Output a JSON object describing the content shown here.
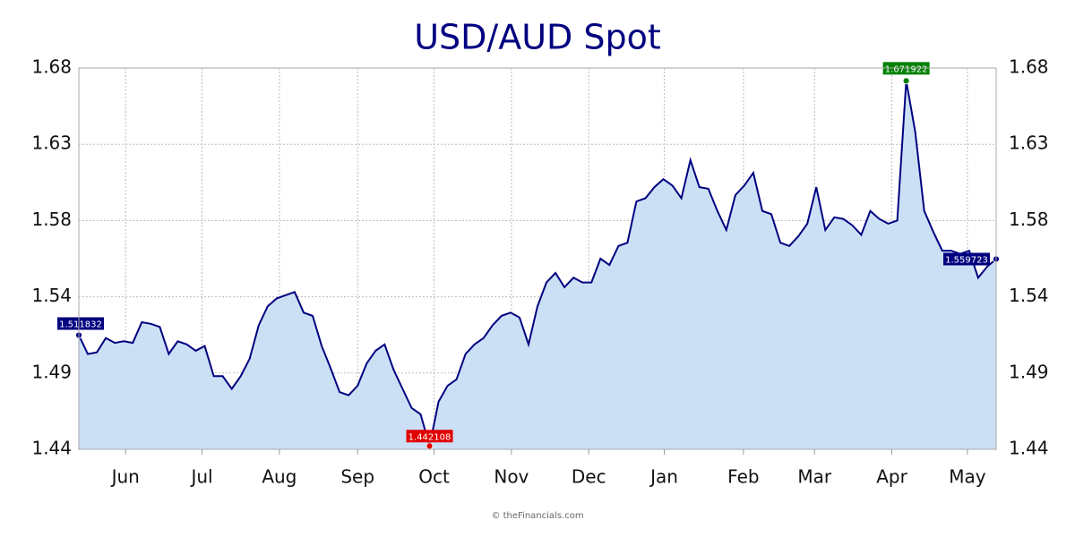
{
  "chart_data": {
    "type": "area",
    "title": "USD/AUD Spot",
    "source": "© theFinancials.com",
    "values": [
      1.511832,
      1.5,
      1.501,
      1.51,
      1.507,
      1.508,
      1.507,
      1.52,
      1.519,
      1.517,
      1.5,
      1.508,
      1.506,
      1.502,
      1.505,
      1.486,
      1.486,
      1.478,
      1.486,
      1.497,
      1.518,
      1.53,
      1.535,
      1.537,
      1.539,
      1.526,
      1.524,
      1.505,
      1.491,
      1.476,
      1.474,
      1.48,
      1.494,
      1.502,
      1.506,
      1.49,
      1.478,
      1.466,
      1.462,
      1.442108,
      1.47,
      1.48,
      1.484,
      1.5,
      1.506,
      1.51,
      1.518,
      1.524,
      1.526,
      1.523,
      1.506,
      1.53,
      1.545,
      1.551,
      1.542,
      1.548,
      1.545,
      1.545,
      1.56,
      1.556,
      1.568,
      1.57,
      1.596,
      1.598,
      1.605,
      1.61,
      1.606,
      1.598,
      1.622,
      1.605,
      1.604,
      1.59,
      1.578,
      1.6,
      1.606,
      1.614,
      1.59,
      1.588,
      1.57,
      1.568,
      1.574,
      1.582,
      1.605,
      1.578,
      1.586,
      1.585,
      1.581,
      1.575,
      1.59,
      1.585,
      1.582,
      1.584,
      1.671922,
      1.64,
      1.59,
      1.577,
      1.565,
      1.565,
      1.563,
      1.565,
      1.548,
      1.555,
      1.559723
    ],
    "color": "#000080",
    "fill": "#cce0f5",
    "xlim": [
      0,
      102
    ],
    "xticks": [
      {
        "value": 5.2,
        "label": "Jun"
      },
      {
        "value": 13.7,
        "label": "Jul"
      },
      {
        "value": 22.3,
        "label": "Aug"
      },
      {
        "value": 31,
        "label": "Sep"
      },
      {
        "value": 39.5,
        "label": "Oct"
      },
      {
        "value": 48.1,
        "label": "Nov"
      },
      {
        "value": 56.7,
        "label": "Dec"
      },
      {
        "value": 65.1,
        "label": "Jan"
      },
      {
        "value": 73.9,
        "label": "Feb"
      },
      {
        "value": 81.8,
        "label": "Mar"
      },
      {
        "value": 90.4,
        "label": "Apr"
      },
      {
        "value": 98.8,
        "label": "May"
      }
    ],
    "ylim": [
      1.44,
      1.68
    ],
    "yticks": [
      1.44,
      {
        "value": 1.488,
        "label": "1.49"
      },
      {
        "value": 1.536,
        "label": "1.54"
      },
      {
        "value": 1.584,
        "label": "1.58"
      },
      {
        "value": 1.632,
        "label": "1.63"
      },
      1.68
    ],
    "grid": true,
    "point_labels": {
      "first": "#000080",
      "min": "#e00000",
      "max": "#008000",
      "last": "#000080"
    }
  }
}
